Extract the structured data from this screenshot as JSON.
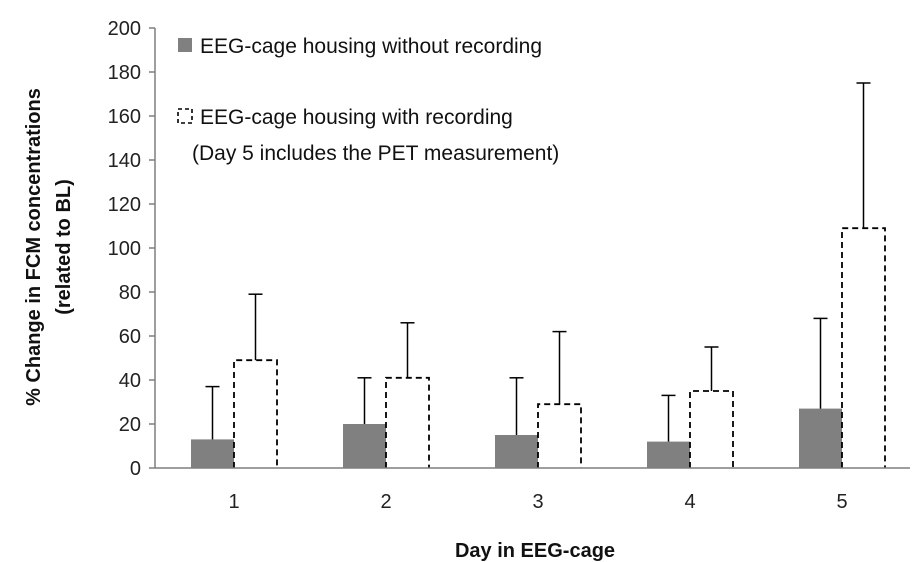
{
  "chart_data": {
    "type": "bar",
    "categories": [
      "1",
      "2",
      "3",
      "4",
      "5"
    ],
    "series": [
      {
        "name": "EEG-cage housing without recording",
        "values": [
          13,
          20,
          15,
          12,
          27
        ],
        "error_upper": [
          37,
          41,
          41,
          33,
          68
        ],
        "color": "#808080",
        "style": "solid"
      },
      {
        "name": "EEG-cage housing with recording",
        "name_line2": "(Day 5 includes the PET measurement)",
        "values": [
          49,
          41,
          29,
          35,
          109
        ],
        "error_upper": [
          79,
          66,
          62,
          55,
          175
        ],
        "color": "#000000",
        "style": "dashed-outline"
      }
    ],
    "xlabel": "Day in EEG-cage",
    "ylabel_line1": "% Change in FCM concentrations",
    "ylabel_line2": "(related to BL)",
    "ylim": [
      0,
      200
    ],
    "yticks": [
      0,
      20,
      40,
      60,
      80,
      100,
      120,
      140,
      160,
      180,
      200
    ],
    "grid": false,
    "legend_position": "top-left"
  }
}
